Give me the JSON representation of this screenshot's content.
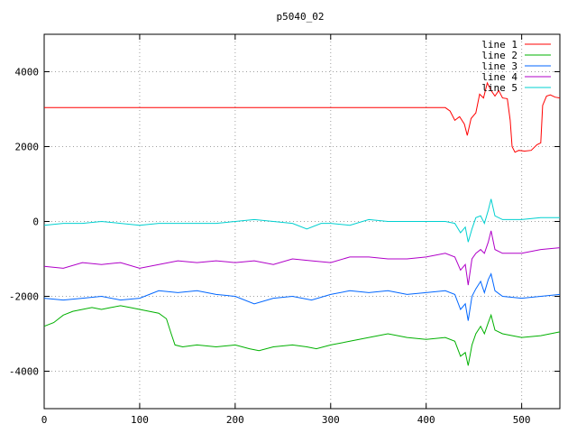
{
  "chart_data": {
    "type": "line",
    "title": "p5040_02",
    "xlabel": "",
    "ylabel": "",
    "xlim": [
      0,
      540
    ],
    "ylim": [
      -5000,
      5000
    ],
    "grid": true,
    "legend_placement": "top-right",
    "x_ticks": [
      0,
      100,
      200,
      300,
      400,
      500
    ],
    "y_ticks": [
      -4000,
      -2000,
      0,
      2000,
      4000
    ],
    "series": [
      {
        "name": "line 1",
        "color": "#ff0000",
        "points": [
          [
            0,
            3040
          ],
          [
            420,
            3040
          ],
          [
            425,
            2950
          ],
          [
            430,
            2700
          ],
          [
            435,
            2800
          ],
          [
            440,
            2600
          ],
          [
            443,
            2300
          ],
          [
            447,
            2750
          ],
          [
            452,
            2900
          ],
          [
            456,
            3400
          ],
          [
            460,
            3300
          ],
          [
            464,
            3700
          ],
          [
            468,
            3500
          ],
          [
            472,
            3350
          ],
          [
            476,
            3500
          ],
          [
            480,
            3300
          ],
          [
            485,
            3280
          ],
          [
            488,
            2700
          ],
          [
            490,
            2000
          ],
          [
            493,
            1850
          ],
          [
            497,
            1900
          ],
          [
            503,
            1880
          ],
          [
            510,
            1900
          ],
          [
            516,
            2050
          ],
          [
            520,
            2100
          ],
          [
            522,
            3100
          ],
          [
            526,
            3350
          ],
          [
            530,
            3380
          ],
          [
            535,
            3320
          ],
          [
            540,
            3300
          ]
        ]
      },
      {
        "name": "line 2",
        "color": "#00b000",
        "points": [
          [
            0,
            -2800
          ],
          [
            10,
            -2700
          ],
          [
            20,
            -2500
          ],
          [
            30,
            -2400
          ],
          [
            40,
            -2350
          ],
          [
            50,
            -2300
          ],
          [
            60,
            -2350
          ],
          [
            70,
            -2300
          ],
          [
            80,
            -2250
          ],
          [
            90,
            -2300
          ],
          [
            100,
            -2350
          ],
          [
            110,
            -2400
          ],
          [
            120,
            -2450
          ],
          [
            128,
            -2600
          ],
          [
            133,
            -3000
          ],
          [
            137,
            -3300
          ],
          [
            145,
            -3350
          ],
          [
            160,
            -3300
          ],
          [
            180,
            -3350
          ],
          [
            200,
            -3300
          ],
          [
            215,
            -3400
          ],
          [
            225,
            -3450
          ],
          [
            240,
            -3350
          ],
          [
            260,
            -3300
          ],
          [
            275,
            -3350
          ],
          [
            285,
            -3400
          ],
          [
            300,
            -3300
          ],
          [
            320,
            -3200
          ],
          [
            340,
            -3100
          ],
          [
            360,
            -3000
          ],
          [
            380,
            -3100
          ],
          [
            400,
            -3150
          ],
          [
            420,
            -3100
          ],
          [
            430,
            -3200
          ],
          [
            436,
            -3600
          ],
          [
            441,
            -3500
          ],
          [
            444,
            -3850
          ],
          [
            448,
            -3300
          ],
          [
            452,
            -3000
          ],
          [
            457,
            -2800
          ],
          [
            461,
            -3000
          ],
          [
            465,
            -2700
          ],
          [
            468,
            -2500
          ],
          [
            472,
            -2900
          ],
          [
            480,
            -3000
          ],
          [
            500,
            -3100
          ],
          [
            520,
            -3050
          ],
          [
            530,
            -3000
          ],
          [
            540,
            -2950
          ]
        ]
      },
      {
        "name": "line 3",
        "color": "#0066ff",
        "points": [
          [
            0,
            -2050
          ],
          [
            20,
            -2100
          ],
          [
            40,
            -2050
          ],
          [
            60,
            -2000
          ],
          [
            80,
            -2100
          ],
          [
            100,
            -2050
          ],
          [
            120,
            -1850
          ],
          [
            140,
            -1900
          ],
          [
            160,
            -1850
          ],
          [
            180,
            -1950
          ],
          [
            200,
            -2000
          ],
          [
            220,
            -2200
          ],
          [
            240,
            -2050
          ],
          [
            260,
            -2000
          ],
          [
            280,
            -2100
          ],
          [
            300,
            -1950
          ],
          [
            320,
            -1850
          ],
          [
            340,
            -1900
          ],
          [
            360,
            -1850
          ],
          [
            380,
            -1950
          ],
          [
            400,
            -1900
          ],
          [
            420,
            -1850
          ],
          [
            430,
            -1950
          ],
          [
            436,
            -2350
          ],
          [
            441,
            -2200
          ],
          [
            444,
            -2650
          ],
          [
            448,
            -2000
          ],
          [
            452,
            -1800
          ],
          [
            457,
            -1600
          ],
          [
            461,
            -1900
          ],
          [
            465,
            -1550
          ],
          [
            468,
            -1400
          ],
          [
            472,
            -1850
          ],
          [
            480,
            -2000
          ],
          [
            500,
            -2050
          ],
          [
            520,
            -2000
          ],
          [
            540,
            -1950
          ]
        ]
      },
      {
        "name": "line 4",
        "color": "#b000c8",
        "points": [
          [
            0,
            -1200
          ],
          [
            20,
            -1250
          ],
          [
            40,
            -1100
          ],
          [
            60,
            -1150
          ],
          [
            80,
            -1100
          ],
          [
            100,
            -1250
          ],
          [
            120,
            -1150
          ],
          [
            140,
            -1050
          ],
          [
            160,
            -1100
          ],
          [
            180,
            -1050
          ],
          [
            200,
            -1100
          ],
          [
            220,
            -1050
          ],
          [
            240,
            -1150
          ],
          [
            260,
            -1000
          ],
          [
            280,
            -1050
          ],
          [
            300,
            -1100
          ],
          [
            320,
            -950
          ],
          [
            340,
            -950
          ],
          [
            360,
            -1000
          ],
          [
            380,
            -1000
          ],
          [
            400,
            -950
          ],
          [
            420,
            -850
          ],
          [
            430,
            -950
          ],
          [
            436,
            -1300
          ],
          [
            441,
            -1150
          ],
          [
            444,
            -1700
          ],
          [
            448,
            -1000
          ],
          [
            452,
            -850
          ],
          [
            457,
            -750
          ],
          [
            461,
            -850
          ],
          [
            465,
            -550
          ],
          [
            468,
            -250
          ],
          [
            472,
            -750
          ],
          [
            480,
            -850
          ],
          [
            500,
            -850
          ],
          [
            520,
            -750
          ],
          [
            540,
            -700
          ]
        ]
      },
      {
        "name": "line 5",
        "color": "#00d0d0",
        "points": [
          [
            0,
            -100
          ],
          [
            20,
            -50
          ],
          [
            40,
            -50
          ],
          [
            60,
            0
          ],
          [
            80,
            -50
          ],
          [
            100,
            -100
          ],
          [
            120,
            -50
          ],
          [
            140,
            -50
          ],
          [
            160,
            -50
          ],
          [
            180,
            -50
          ],
          [
            200,
            0
          ],
          [
            220,
            50
          ],
          [
            240,
            0
          ],
          [
            260,
            -50
          ],
          [
            275,
            -200
          ],
          [
            290,
            -50
          ],
          [
            300,
            -50
          ],
          [
            320,
            -100
          ],
          [
            340,
            50
          ],
          [
            360,
            0
          ],
          [
            380,
            0
          ],
          [
            400,
            0
          ],
          [
            420,
            0
          ],
          [
            430,
            -50
          ],
          [
            436,
            -300
          ],
          [
            441,
            -150
          ],
          [
            444,
            -550
          ],
          [
            448,
            -200
          ],
          [
            452,
            100
          ],
          [
            457,
            150
          ],
          [
            461,
            -50
          ],
          [
            465,
            300
          ],
          [
            468,
            600
          ],
          [
            472,
            150
          ],
          [
            480,
            50
          ],
          [
            500,
            50
          ],
          [
            520,
            100
          ],
          [
            540,
            100
          ]
        ]
      }
    ]
  }
}
